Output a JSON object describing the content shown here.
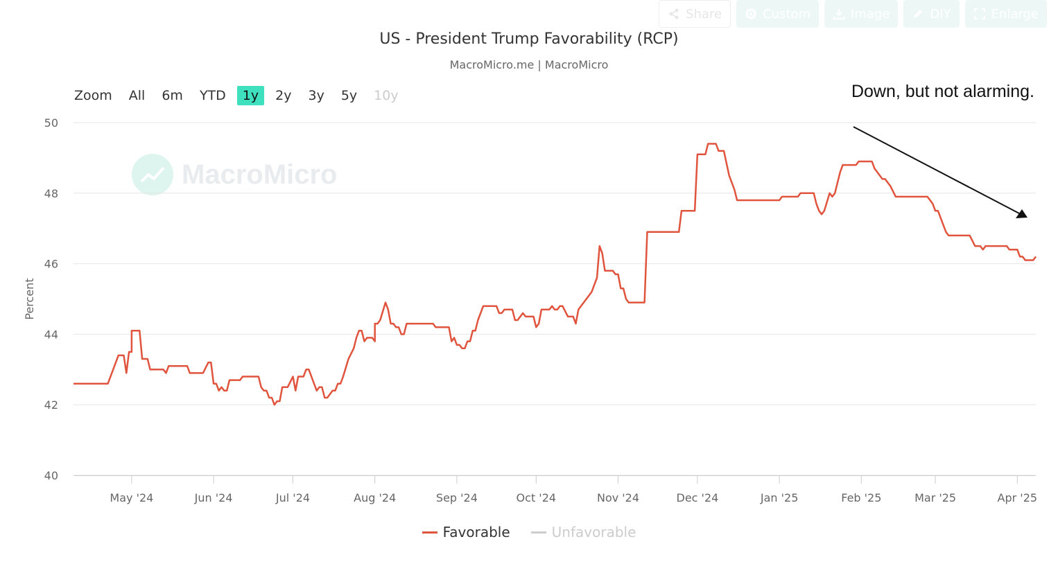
{
  "toolbar": {
    "share": "Share",
    "custom": "Custom",
    "image": "Image",
    "diy": "DIY",
    "enlarge": "Enlarge"
  },
  "zoom": {
    "label": "Zoom",
    "options": [
      "All",
      "6m",
      "YTD",
      "1y",
      "2y",
      "3y",
      "5y",
      "10y"
    ],
    "active": "1y",
    "disabled": [
      "10y"
    ]
  },
  "watermark": "MacroMicro",
  "annotation": "Down, but not alarming.",
  "colors": {
    "favorable": "#e0533d",
    "unfavorable": "#cccccc",
    "accent": "#3ee0be",
    "grid": "#e6e6e6"
  },
  "chart_data": {
    "type": "line",
    "title": "US - President Trump Favorability (RCP)",
    "subtitle": "MacroMicro.me | MacroMicro",
    "ylabel": "Percent",
    "ylim": [
      40,
      50
    ],
    "yticks": [
      40,
      42,
      44,
      46,
      48,
      50
    ],
    "x_domain": [
      "2024-04-09",
      "2025-04-08"
    ],
    "xticks": [
      {
        "label": "May '24",
        "date": "2024-05-01"
      },
      {
        "label": "Jun '24",
        "date": "2024-06-01"
      },
      {
        "label": "Jul '24",
        "date": "2024-07-01"
      },
      {
        "label": "Aug '24",
        "date": "2024-08-01"
      },
      {
        "label": "Sep '24",
        "date": "2024-09-01"
      },
      {
        "label": "Oct '24",
        "date": "2024-10-01"
      },
      {
        "label": "Nov '24",
        "date": "2024-11-01"
      },
      {
        "label": "Dec '24",
        "date": "2024-12-01"
      },
      {
        "label": "Jan '25",
        "date": "2025-01-01"
      },
      {
        "label": "Feb '25",
        "date": "2025-02-01"
      },
      {
        "label": "Mar '25",
        "date": "2025-03-01"
      },
      {
        "label": "Apr '25",
        "date": "2025-04-01"
      }
    ],
    "series": [
      {
        "name": "Favorable",
        "visible": true,
        "points": [
          [
            "2024-04-09",
            42.6
          ],
          [
            "2024-04-22",
            42.6
          ],
          [
            "2024-04-24",
            43.0
          ],
          [
            "2024-04-26",
            43.4
          ],
          [
            "2024-04-28",
            43.4
          ],
          [
            "2024-04-29",
            42.9
          ],
          [
            "2024-04-30",
            43.5
          ],
          [
            "2024-05-01",
            43.5
          ],
          [
            "2024-05-01",
            44.1
          ],
          [
            "2024-05-04",
            44.1
          ],
          [
            "2024-05-05",
            43.3
          ],
          [
            "2024-05-07",
            43.3
          ],
          [
            "2024-05-08",
            43.0
          ],
          [
            "2024-05-13",
            43.0
          ],
          [
            "2024-05-14",
            42.9
          ],
          [
            "2024-05-15",
            43.1
          ],
          [
            "2024-05-22",
            43.1
          ],
          [
            "2024-05-23",
            42.9
          ],
          [
            "2024-05-28",
            42.9
          ],
          [
            "2024-05-30",
            43.2
          ],
          [
            "2024-05-31",
            43.2
          ],
          [
            "2024-06-01",
            42.6
          ],
          [
            "2024-06-02",
            42.6
          ],
          [
            "2024-06-03",
            42.4
          ],
          [
            "2024-06-04",
            42.5
          ],
          [
            "2024-06-05",
            42.4
          ],
          [
            "2024-06-06",
            42.4
          ],
          [
            "2024-06-07",
            42.7
          ],
          [
            "2024-06-11",
            42.7
          ],
          [
            "2024-06-12",
            42.8
          ],
          [
            "2024-06-18",
            42.8
          ],
          [
            "2024-06-19",
            42.5
          ],
          [
            "2024-06-20",
            42.4
          ],
          [
            "2024-06-21",
            42.4
          ],
          [
            "2024-06-22",
            42.2
          ],
          [
            "2024-06-23",
            42.2
          ],
          [
            "2024-06-24",
            42.0
          ],
          [
            "2024-06-25",
            42.1
          ],
          [
            "2024-06-26",
            42.1
          ],
          [
            "2024-06-27",
            42.5
          ],
          [
            "2024-06-29",
            42.5
          ],
          [
            "2024-07-01",
            42.8
          ],
          [
            "2024-07-02",
            42.4
          ],
          [
            "2024-07-03",
            42.8
          ],
          [
            "2024-07-05",
            42.8
          ],
          [
            "2024-07-06",
            43.0
          ],
          [
            "2024-07-07",
            43.0
          ],
          [
            "2024-07-09",
            42.6
          ],
          [
            "2024-07-10",
            42.4
          ],
          [
            "2024-07-11",
            42.5
          ],
          [
            "2024-07-12",
            42.5
          ],
          [
            "2024-07-13",
            42.2
          ],
          [
            "2024-07-14",
            42.2
          ],
          [
            "2024-07-16",
            42.4
          ],
          [
            "2024-07-17",
            42.4
          ],
          [
            "2024-07-18",
            42.6
          ],
          [
            "2024-07-19",
            42.6
          ],
          [
            "2024-07-20",
            42.8
          ],
          [
            "2024-07-22",
            43.3
          ],
          [
            "2024-07-24",
            43.6
          ],
          [
            "2024-07-25",
            43.9
          ],
          [
            "2024-07-26",
            44.1
          ],
          [
            "2024-07-27",
            44.1
          ],
          [
            "2024-07-28",
            43.8
          ],
          [
            "2024-07-29",
            43.9
          ],
          [
            "2024-07-31",
            43.9
          ],
          [
            "2024-08-01",
            43.8
          ],
          [
            "2024-08-01",
            44.3
          ],
          [
            "2024-08-02",
            44.3
          ],
          [
            "2024-08-03",
            44.4
          ],
          [
            "2024-08-05",
            44.9
          ],
          [
            "2024-08-06",
            44.7
          ],
          [
            "2024-08-07",
            44.3
          ],
          [
            "2024-08-08",
            44.3
          ],
          [
            "2024-08-09",
            44.2
          ],
          [
            "2024-08-10",
            44.2
          ],
          [
            "2024-08-11",
            44.0
          ],
          [
            "2024-08-12",
            44.0
          ],
          [
            "2024-08-13",
            44.3
          ],
          [
            "2024-08-23",
            44.3
          ],
          [
            "2024-08-24",
            44.2
          ],
          [
            "2024-08-29",
            44.2
          ],
          [
            "2024-08-30",
            43.8
          ],
          [
            "2024-08-31",
            43.9
          ],
          [
            "2024-09-01",
            43.7
          ],
          [
            "2024-09-02",
            43.7
          ],
          [
            "2024-09-03",
            43.6
          ],
          [
            "2024-09-04",
            43.6
          ],
          [
            "2024-09-05",
            43.8
          ],
          [
            "2024-09-06",
            43.8
          ],
          [
            "2024-09-07",
            44.1
          ],
          [
            "2024-09-08",
            44.1
          ],
          [
            "2024-09-09",
            44.4
          ],
          [
            "2024-09-11",
            44.8
          ],
          [
            "2024-09-16",
            44.8
          ],
          [
            "2024-09-17",
            44.6
          ],
          [
            "2024-09-18",
            44.6
          ],
          [
            "2024-09-19",
            44.7
          ],
          [
            "2024-09-22",
            44.7
          ],
          [
            "2024-09-23",
            44.4
          ],
          [
            "2024-09-24",
            44.4
          ],
          [
            "2024-09-26",
            44.6
          ],
          [
            "2024-09-27",
            44.5
          ],
          [
            "2024-09-30",
            44.5
          ],
          [
            "2024-10-01",
            44.2
          ],
          [
            "2024-10-02",
            44.3
          ],
          [
            "2024-10-03",
            44.7
          ],
          [
            "2024-10-06",
            44.7
          ],
          [
            "2024-10-07",
            44.8
          ],
          [
            "2024-10-08",
            44.7
          ],
          [
            "2024-10-09",
            44.7
          ],
          [
            "2024-10-10",
            44.8
          ],
          [
            "2024-10-11",
            44.8
          ],
          [
            "2024-10-13",
            44.5
          ],
          [
            "2024-10-15",
            44.5
          ],
          [
            "2024-10-16",
            44.3
          ],
          [
            "2024-10-17",
            44.7
          ],
          [
            "2024-10-19",
            44.9
          ],
          [
            "2024-10-21",
            45.1
          ],
          [
            "2024-10-22",
            45.2
          ],
          [
            "2024-10-23",
            45.4
          ],
          [
            "2024-10-24",
            45.6
          ],
          [
            "2024-10-25",
            46.5
          ],
          [
            "2024-10-26",
            46.3
          ],
          [
            "2024-10-27",
            45.8
          ],
          [
            "2024-10-30",
            45.8
          ],
          [
            "2024-10-31",
            45.7
          ],
          [
            "2024-11-01",
            45.7
          ],
          [
            "2024-11-02",
            45.3
          ],
          [
            "2024-11-03",
            45.3
          ],
          [
            "2024-11-04",
            45.0
          ],
          [
            "2024-11-05",
            44.9
          ],
          [
            "2024-11-11",
            44.9
          ],
          [
            "2024-11-12",
            46.9
          ],
          [
            "2024-11-24",
            46.9
          ],
          [
            "2024-11-25",
            47.5
          ],
          [
            "2024-11-30",
            47.5
          ],
          [
            "2024-12-01",
            49.1
          ],
          [
            "2024-12-04",
            49.1
          ],
          [
            "2024-12-05",
            49.4
          ],
          [
            "2024-12-08",
            49.4
          ],
          [
            "2024-12-09",
            49.2
          ],
          [
            "2024-12-11",
            49.2
          ],
          [
            "2024-12-13",
            48.5
          ],
          [
            "2024-12-15",
            48.1
          ],
          [
            "2024-12-16",
            47.8
          ],
          [
            "2024-12-31",
            47.8
          ],
          [
            "2025-01-01",
            47.8
          ],
          [
            "2025-01-02",
            47.9
          ],
          [
            "2025-01-08",
            47.9
          ],
          [
            "2025-01-09",
            48.0
          ],
          [
            "2025-01-14",
            48.0
          ],
          [
            "2025-01-15",
            47.7
          ],
          [
            "2025-01-16",
            47.5
          ],
          [
            "2025-01-17",
            47.4
          ],
          [
            "2025-01-18",
            47.5
          ],
          [
            "2025-01-20",
            48.0
          ],
          [
            "2025-01-21",
            47.9
          ],
          [
            "2025-01-22",
            48.0
          ],
          [
            "2025-01-23",
            48.3
          ],
          [
            "2025-01-24",
            48.6
          ],
          [
            "2025-01-25",
            48.8
          ],
          [
            "2025-01-30",
            48.8
          ],
          [
            "2025-01-31",
            48.9
          ],
          [
            "2025-02-05",
            48.9
          ],
          [
            "2025-02-06",
            48.7
          ],
          [
            "2025-02-07",
            48.6
          ],
          [
            "2025-02-08",
            48.5
          ],
          [
            "2025-02-09",
            48.4
          ],
          [
            "2025-02-10",
            48.4
          ],
          [
            "2025-02-12",
            48.2
          ],
          [
            "2025-02-14",
            47.9
          ],
          [
            "2025-02-26",
            47.9
          ],
          [
            "2025-02-27",
            47.8
          ],
          [
            "2025-02-28",
            47.7
          ],
          [
            "2025-03-01",
            47.5
          ],
          [
            "2025-03-02",
            47.5
          ],
          [
            "2025-03-04",
            47.1
          ],
          [
            "2025-03-05",
            46.9
          ],
          [
            "2025-03-06",
            46.8
          ],
          [
            "2025-03-14",
            46.8
          ],
          [
            "2025-03-16",
            46.5
          ],
          [
            "2025-03-18",
            46.5
          ],
          [
            "2025-03-19",
            46.4
          ],
          [
            "2025-03-20",
            46.5
          ],
          [
            "2025-03-28",
            46.5
          ],
          [
            "2025-03-29",
            46.4
          ],
          [
            "2025-04-01",
            46.4
          ],
          [
            "2025-04-02",
            46.2
          ],
          [
            "2025-04-03",
            46.2
          ],
          [
            "2025-04-04",
            46.1
          ],
          [
            "2025-04-07",
            46.1
          ],
          [
            "2025-04-08",
            46.2
          ]
        ]
      },
      {
        "name": "Unfavorable",
        "visible": false,
        "points": []
      }
    ],
    "annotation": "Down, but not alarming."
  }
}
